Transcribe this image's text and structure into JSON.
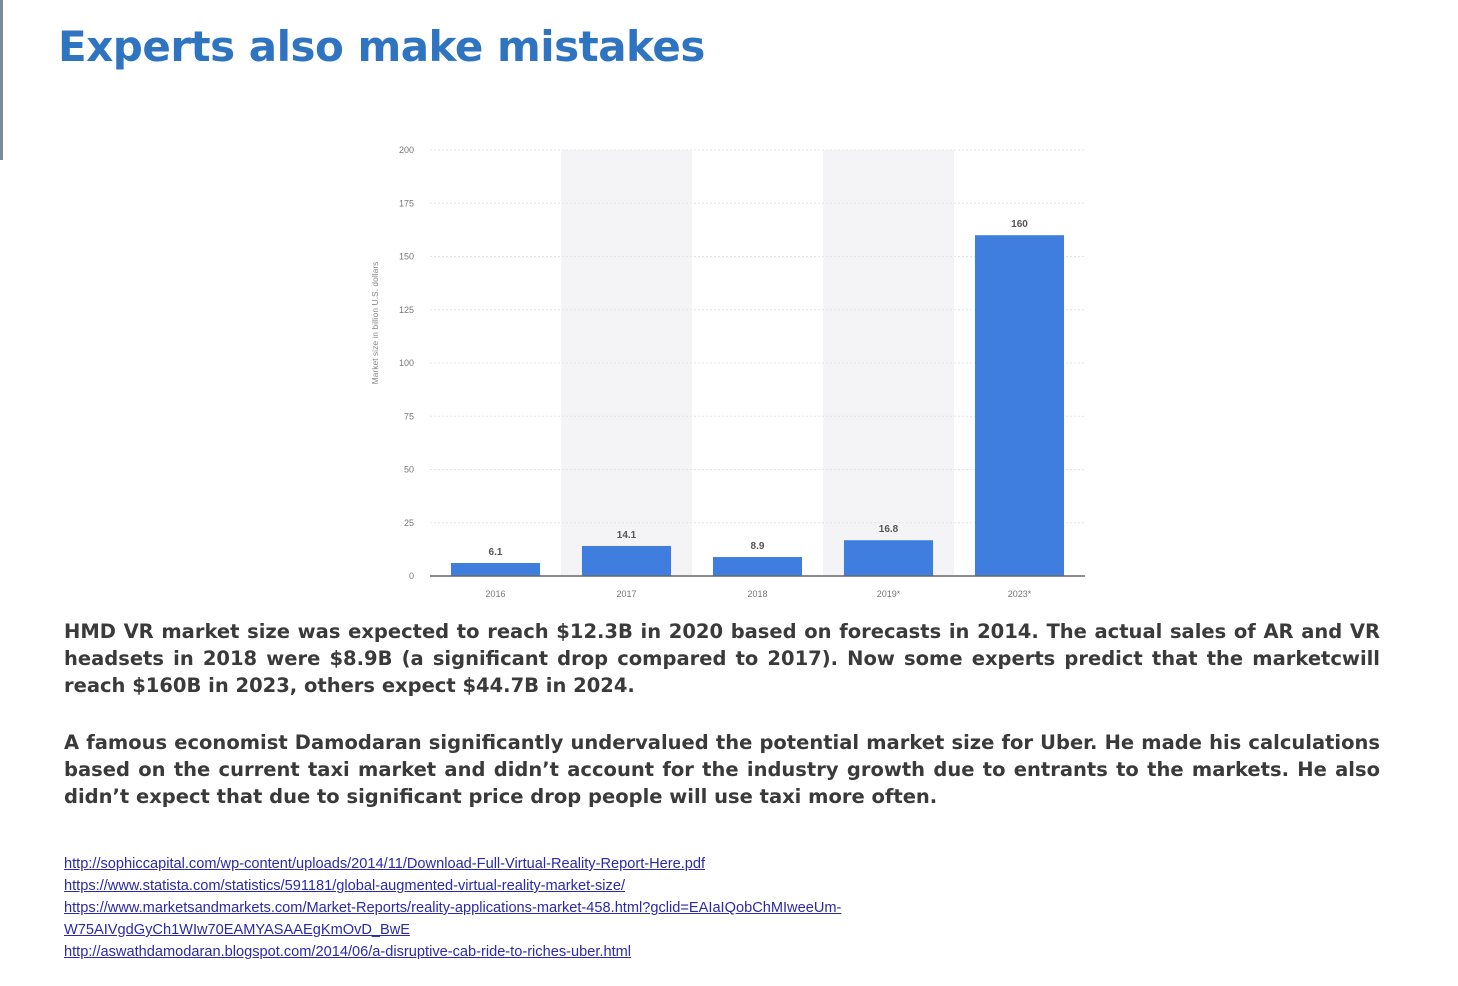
{
  "slide": {
    "title": "Experts also make mistakes",
    "paragraphs": [
      "HMD VR market size was expected to reach $12.3B in 2020 based on forecasts in 2014. The actual sales of AR and VR headsets in 2018 were $8.9B (a significant drop compared to 2017). Now some experts predict that the marketcwill reach $160B in 2023, others expect $44.7B in 2024.",
      "A famous economist Damodaran significantly undervalued the potential market size for Uber. He made his calculations based on the current taxi market and didn’t account for the industry growth due to entrants to the markets. He also didn’t expect that due to significant price drop people will use taxi more often."
    ],
    "links": [
      "http://sophiccapital.com/wp-content/uploads/2014/11/Download-Full-Virtual-Reality-Report-Here.pdf",
      "https://www.statista.com/statistics/591181/global-augmented-virtual-reality-market-size/",
      "https://www.marketsandmarkets.com/Market-Reports/reality-applications-market-458.html?gclid=EAIaIQobChMIweeUm-",
      "W75AIVgdGyCh1WIw70EAMYASAAEgKmOvD_BwE",
      "http://aswathdamodaran.blogspot.com/2014/06/a-disruptive-cab-ride-to-riches-uber.html"
    ]
  },
  "chart_data": {
    "type": "bar",
    "categories": [
      "2016",
      "2017",
      "2018",
      "2019*",
      "2023*"
    ],
    "values": [
      6.1,
      14.1,
      8.9,
      16.8,
      160
    ],
    "data_labels": [
      "6.1",
      "14.1",
      "8.9",
      "16.8",
      "160"
    ],
    "title": "",
    "xlabel": "",
    "ylabel": "Market size in billion U.S. dollars",
    "ylim": [
      0,
      200
    ],
    "yticks": [
      0,
      25,
      50,
      75,
      100,
      125,
      150,
      175,
      200
    ],
    "grid": true,
    "bar_color": "#3f7ede",
    "band_color": "#f4f4f6",
    "grid_color": "#e4e4e4"
  }
}
